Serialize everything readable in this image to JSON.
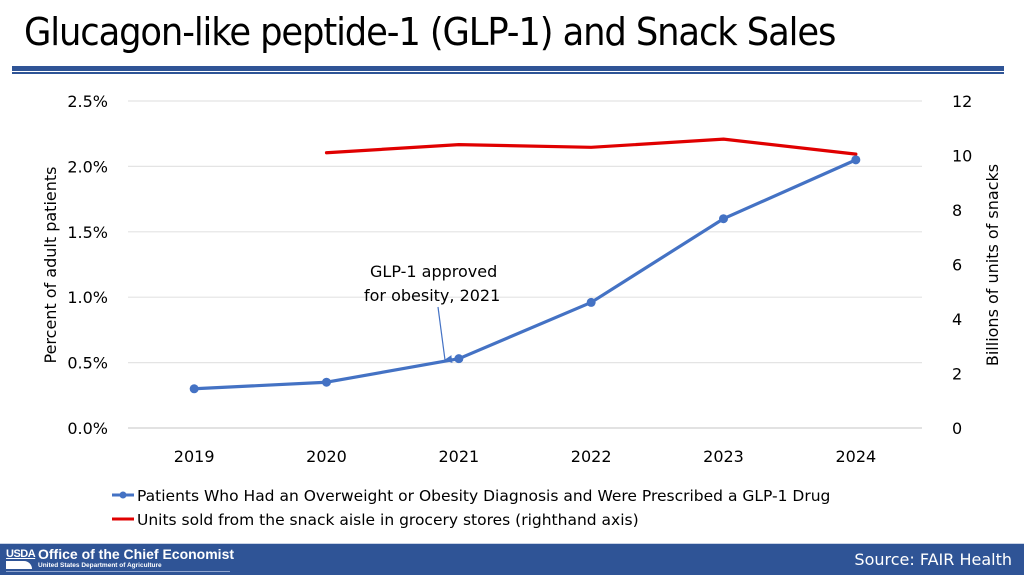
{
  "header": {
    "title": "Glucagon-like peptide-1 (GLP-1) and Snack Sales"
  },
  "footer": {
    "logo_text": "USDA",
    "office_name": "Office of the Chief Economist",
    "department": "United States Department of Agriculture",
    "source": "Source: FAIR Health"
  },
  "colors": {
    "brand_blue": "#2f5496",
    "series_blue": "#4472c4",
    "series_red": "#e00000"
  },
  "chart_data": {
    "type": "line",
    "title": "Glucagon-like peptide-1 (GLP-1) and Snack Sales",
    "categories": [
      "2019",
      "2020",
      "2021",
      "2022",
      "2023",
      "2024"
    ],
    "ylabel": "Percent of adult patients",
    "y2label": "Billions of units of snacks",
    "xlabel": "",
    "ylim": [
      0,
      2.5
    ],
    "y2lim": [
      0,
      12
    ],
    "yticks": [
      "0.0%",
      "0.5%",
      "1.0%",
      "1.5%",
      "2.0%",
      "2.5%"
    ],
    "yticks_values": [
      0,
      0.5,
      1.0,
      1.5,
      2.0,
      2.5
    ],
    "y2ticks": [
      "0",
      "2",
      "4",
      "6",
      "8",
      "10",
      "12"
    ],
    "y2ticks_values": [
      0,
      2,
      4,
      6,
      8,
      10,
      12
    ],
    "grid": true,
    "legend_position": "bottom",
    "series": [
      {
        "name": "Patients Who Had an Overweight or Obesity Diagnosis and Were Prescribed a GLP-1 Drug",
        "axis": "left",
        "unit": "percent",
        "markers": true,
        "color": "#4472c4",
        "values": [
          0.3,
          0.35,
          0.53,
          0.96,
          1.6,
          2.05
        ]
      },
      {
        "name": "Units sold from the snack aisle in grocery stores (righthand axis)",
        "axis": "right",
        "unit": "billions of units",
        "markers": false,
        "color": "#e00000",
        "values": [
          null,
          10.1,
          10.4,
          10.3,
          10.6,
          10.05
        ]
      }
    ],
    "annotations": [
      {
        "text_lines": [
          "GLP-1 approved",
          "for obesity, 2021"
        ],
        "points_to": {
          "category": "2021",
          "series": 0
        }
      }
    ]
  }
}
